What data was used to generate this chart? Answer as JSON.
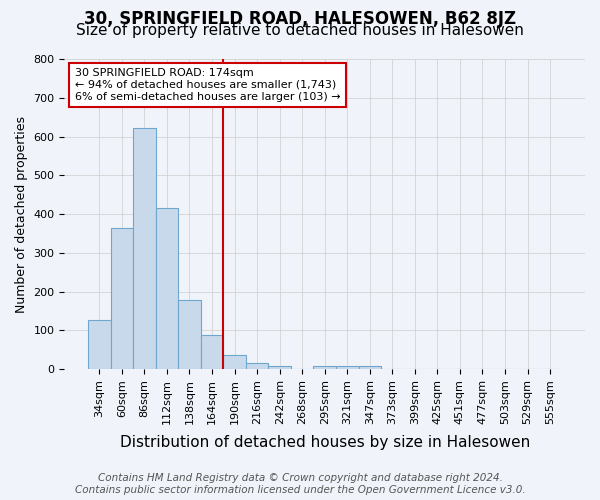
{
  "title": "30, SPRINGFIELD ROAD, HALESOWEN, B62 8JZ",
  "subtitle": "Size of property relative to detached houses in Halesowen",
  "xlabel": "Distribution of detached houses by size in Halesowen",
  "ylabel": "Number of detached properties",
  "bin_labels": [
    "34sqm",
    "60sqm",
    "86sqm",
    "112sqm",
    "138sqm",
    "164sqm",
    "190sqm",
    "216sqm",
    "242sqm",
    "268sqm",
    "295sqm",
    "321sqm",
    "347sqm",
    "373sqm",
    "399sqm",
    "425sqm",
    "451sqm",
    "477sqm",
    "503sqm",
    "529sqm",
    "555sqm"
  ],
  "bar_heights": [
    127,
    365,
    621,
    415,
    178,
    88,
    35,
    15,
    8,
    0,
    8,
    9,
    7,
    0,
    0,
    0,
    0,
    0,
    0,
    0,
    0
  ],
  "bar_color": "#c9d9ec",
  "bar_edge_color": "#6ea6cd",
  "vline_x": 5.5,
  "vline_color": "#cc0000",
  "annotation_text": "30 SPRINGFIELD ROAD: 174sqm\n← 94% of detached houses are smaller (1,743)\n6% of semi-detached houses are larger (103) →",
  "annotation_box_color": "#ffffff",
  "annotation_box_edge": "#cc0000",
  "ylim": [
    0,
    800
  ],
  "yticks": [
    0,
    100,
    200,
    300,
    400,
    500,
    600,
    700,
    800
  ],
  "footnote": "Contains HM Land Registry data © Crown copyright and database right 2024.\nContains public sector information licensed under the Open Government Licence v3.0.",
  "title_fontsize": 12,
  "subtitle_fontsize": 11,
  "xlabel_fontsize": 11,
  "ylabel_fontsize": 9,
  "tick_fontsize": 8,
  "footnote_fontsize": 7.5,
  "bg_color": "#f0f4fa"
}
